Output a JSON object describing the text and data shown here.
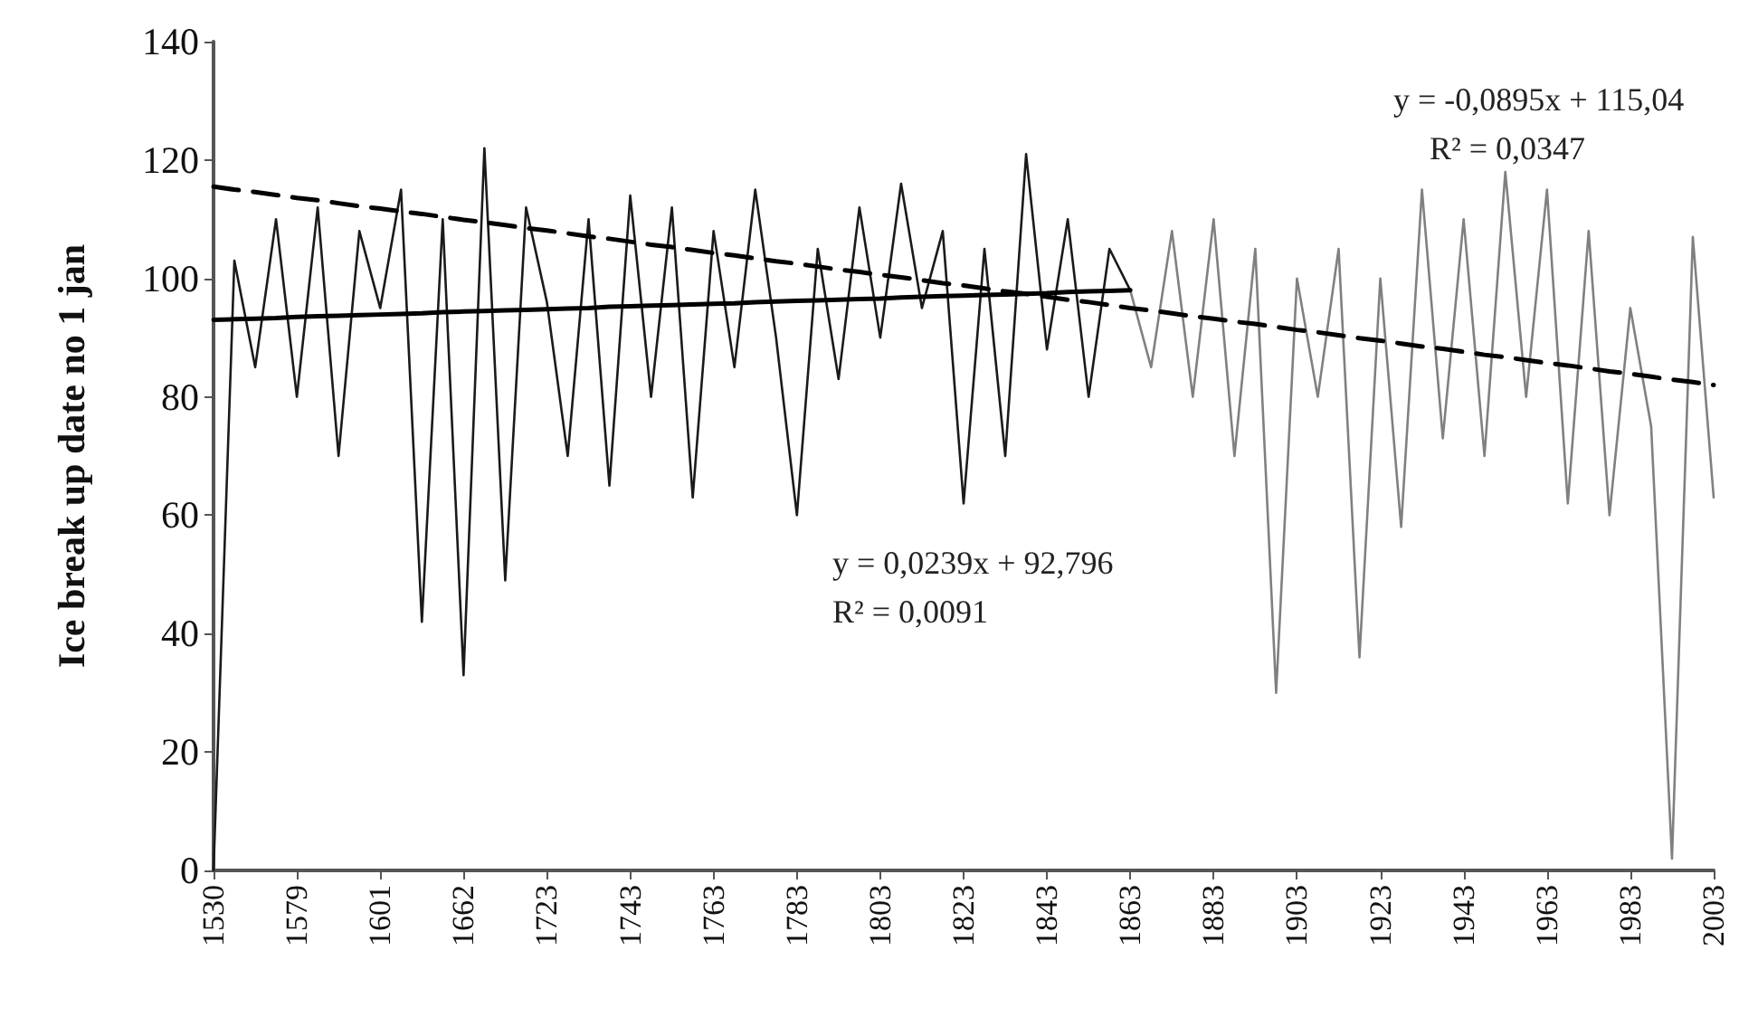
{
  "chart_data": {
    "type": "line",
    "ylabel": "Ice break up date no 1 jan",
    "categories": [
      "1530",
      null,
      null,
      null,
      "1579",
      null,
      null,
      null,
      "1601",
      null,
      null,
      null,
      "1662",
      null,
      null,
      null,
      "1723",
      null,
      null,
      null,
      "1743",
      null,
      null,
      null,
      "1763",
      null,
      null,
      null,
      "1783",
      null,
      null,
      null,
      "1803",
      null,
      null,
      null,
      "1823",
      null,
      null,
      null,
      "1843",
      null,
      null,
      null,
      "1863",
      null,
      null,
      null,
      "1883",
      null,
      null,
      null,
      "1903",
      null,
      null,
      null,
      "1923",
      null,
      null,
      null,
      "1943",
      null,
      null,
      null,
      "1963",
      null,
      null,
      null,
      "1983",
      null,
      null,
      null,
      "2003"
    ],
    "series": [
      {
        "color": "#1a1a1a",
        "values": [
          0,
          103,
          85,
          110,
          80,
          112,
          70,
          108,
          95,
          115,
          42,
          110,
          33,
          122,
          49,
          112,
          96,
          70,
          110,
          65,
          114,
          80,
          112,
          63,
          108,
          85,
          115,
          90,
          60,
          105,
          83,
          112,
          90,
          116,
          95,
          108,
          62,
          105,
          70,
          121,
          88,
          110,
          80,
          105,
          98,
          null,
          null,
          null,
          null,
          null,
          null,
          null,
          null,
          null,
          null,
          null,
          null,
          null,
          null,
          null,
          null,
          null,
          null,
          null,
          null,
          null,
          null,
          null,
          null,
          null,
          null,
          null,
          null
        ]
      },
      {
        "color": "#808080",
        "values": [
          null,
          null,
          null,
          null,
          null,
          null,
          null,
          null,
          null,
          null,
          null,
          null,
          null,
          null,
          null,
          null,
          null,
          null,
          null,
          null,
          null,
          null,
          null,
          null,
          null,
          null,
          null,
          null,
          null,
          null,
          null,
          null,
          null,
          null,
          null,
          null,
          null,
          null,
          null,
          null,
          null,
          null,
          null,
          null,
          98,
          85,
          108,
          80,
          110,
          70,
          105,
          30,
          100,
          80,
          105,
          36,
          100,
          58,
          115,
          73,
          110,
          70,
          118,
          80,
          115,
          62,
          108,
          60,
          95,
          75,
          2,
          107,
          63
        ]
      },
      {
        "color": "#000000",
        "line_style": "solid",
        "values": [
          93.0,
          93.1,
          93.2,
          93.3,
          93.5,
          93.6,
          93.7,
          93.8,
          93.9,
          94.0,
          94.1,
          94.3,
          94.4,
          94.5,
          94.6,
          94.7,
          94.8,
          94.9,
          95.0,
          95.2,
          95.3,
          95.4,
          95.5,
          95.6,
          95.7,
          95.8,
          96.0,
          96.1,
          96.2,
          96.3,
          96.4,
          96.5,
          96.6,
          96.8,
          96.9,
          97.0,
          97.1,
          97.2,
          97.3,
          97.4,
          97.5,
          97.7,
          97.8,
          97.9,
          98.0,
          null,
          null,
          null,
          null,
          null,
          null,
          null,
          null,
          null,
          null,
          null,
          null,
          null,
          null,
          null,
          null,
          null,
          null,
          null,
          null,
          null,
          null,
          null,
          null,
          null,
          null,
          null,
          null
        ]
      },
      {
        "color": "#000000",
        "line_style": "dashed",
        "values": [
          115.5,
          115.0,
          114.6,
          114.1,
          113.6,
          113.2,
          112.7,
          112.2,
          111.8,
          111.3,
          110.9,
          110.4,
          109.9,
          109.5,
          109.0,
          108.5,
          108.1,
          107.6,
          107.1,
          106.7,
          106.2,
          105.7,
          105.3,
          104.8,
          104.3,
          103.9,
          103.4,
          102.9,
          102.5,
          102.0,
          101.5,
          101.1,
          100.6,
          100.2,
          99.7,
          99.2,
          98.8,
          98.3,
          97.8,
          97.4,
          96.9,
          96.4,
          96.0,
          95.5,
          95.0,
          94.6,
          94.1,
          93.6,
          93.2,
          92.7,
          92.3,
          91.8,
          91.3,
          90.9,
          90.4,
          89.9,
          89.5,
          89.0,
          88.5,
          88.1,
          87.6,
          87.1,
          86.7,
          86.2,
          85.7,
          85.3,
          84.8,
          84.3,
          83.9,
          83.4,
          82.9,
          82.5,
          82.0
        ]
      }
    ],
    "ylim": [
      0,
      140
    ],
    "yticks": [
      0,
      20,
      40,
      60,
      80,
      100,
      120,
      140
    ],
    "grid": false,
    "marker": "none",
    "annotations": [
      "y = -0,0895x + 115,04",
      "R² = 0,0347",
      "y = 0,0239x + 92,796",
      "R² = 0,0091"
    ]
  }
}
